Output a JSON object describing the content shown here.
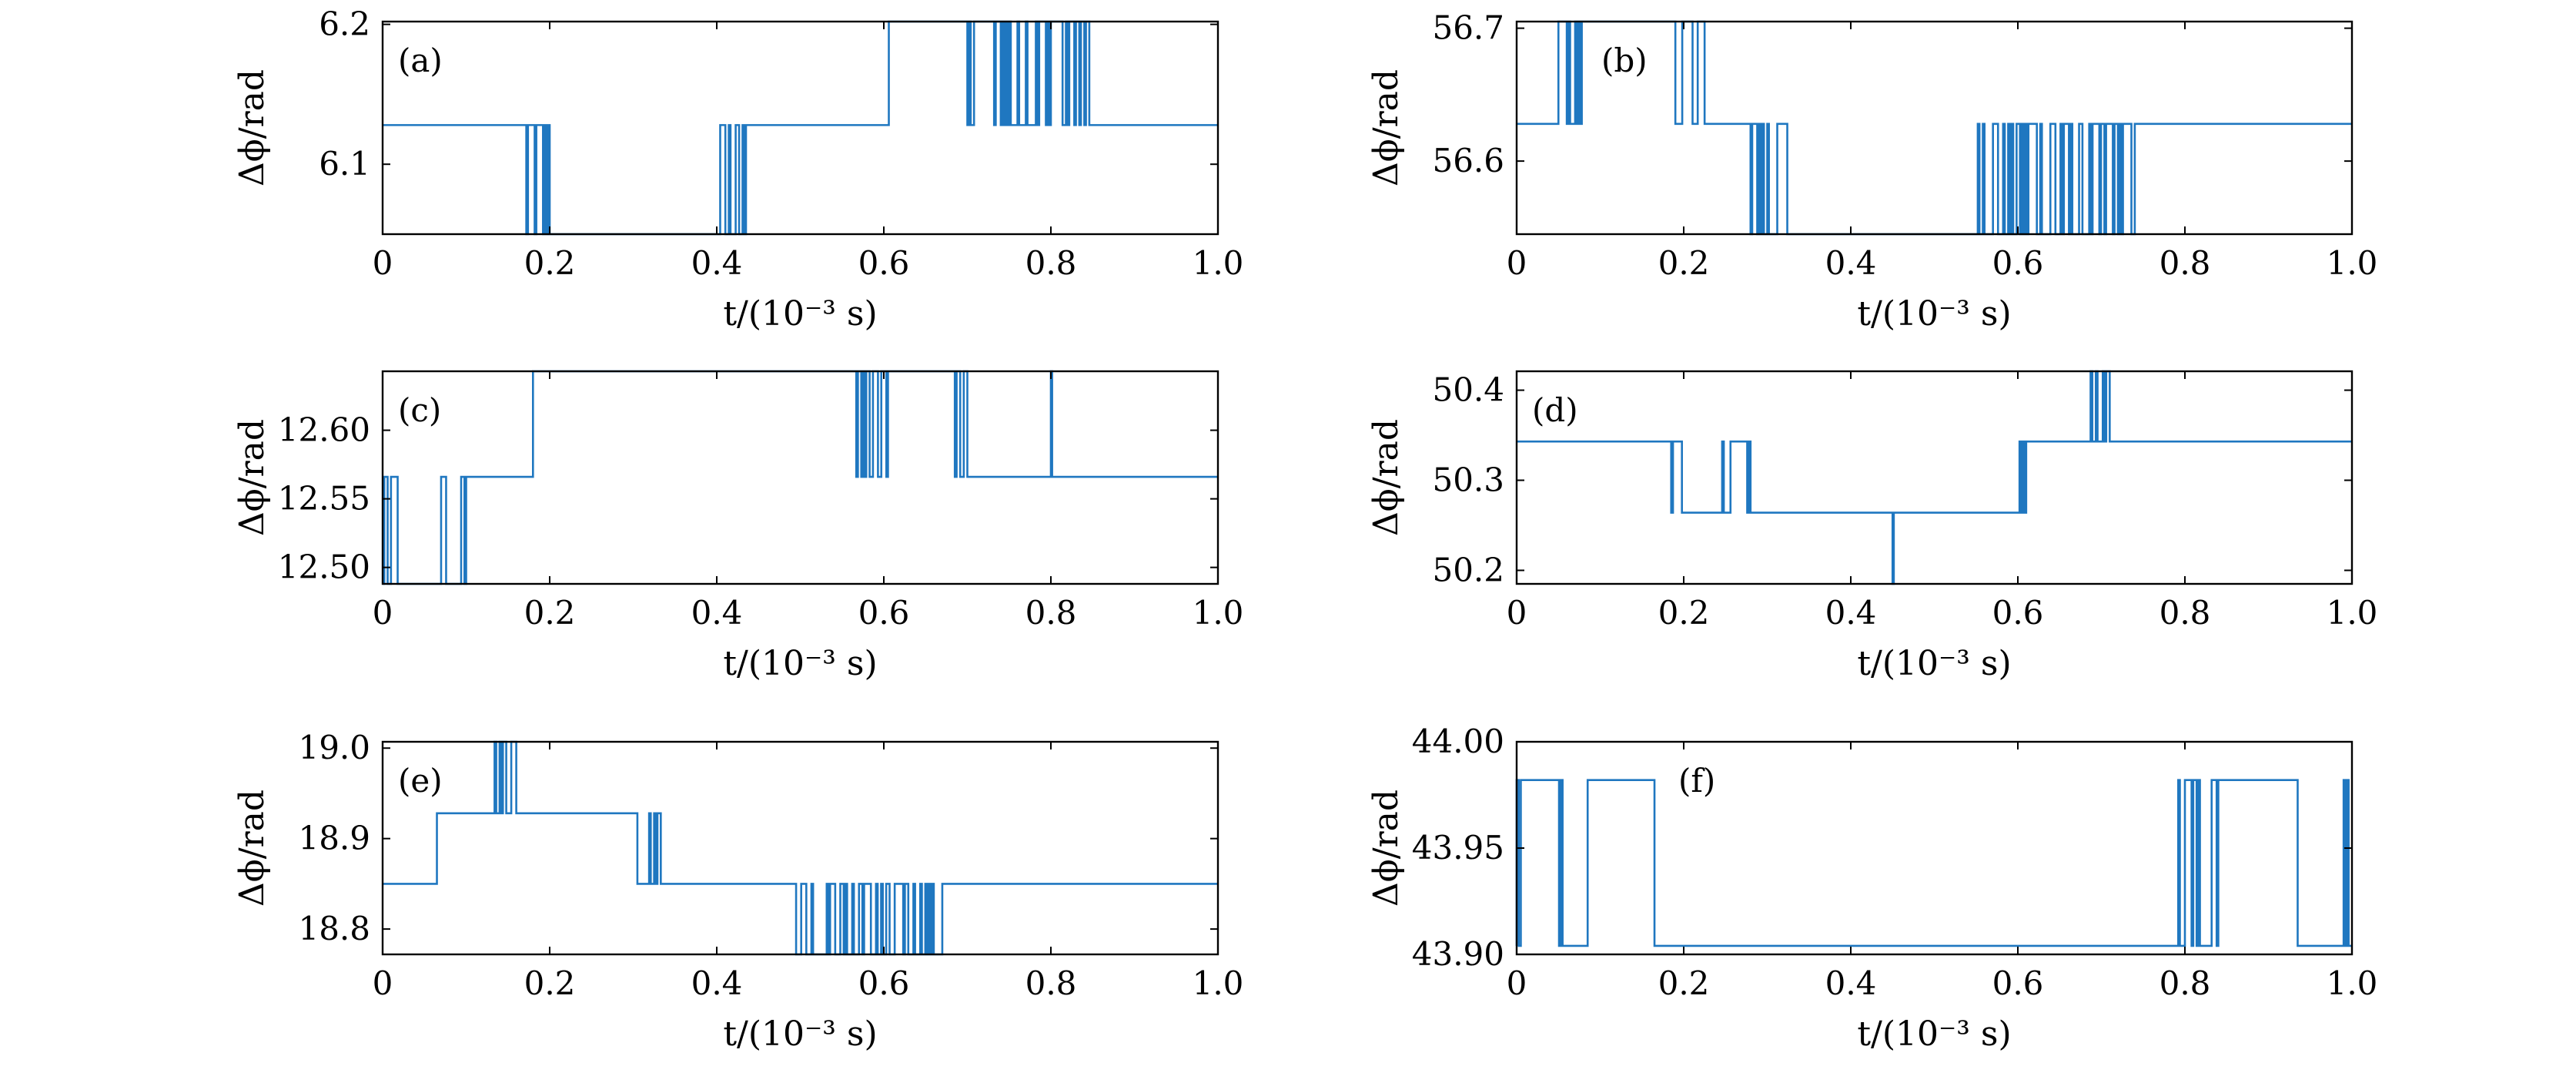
{
  "figure": {
    "line_color": "#1f77c0",
    "axis_color": "#000000",
    "background": "#ffffff"
  },
  "chart_data": [
    {
      "type": "line",
      "panel_label": "(a)",
      "xlabel": "t/(10⁻³ s)",
      "ylabel": "Δϕ/rad",
      "xlim": [
        0,
        1.0
      ],
      "ylim": [
        6.05,
        6.202
      ],
      "xticks": [
        0,
        0.2,
        0.4,
        0.6,
        0.8,
        1.0
      ],
      "xtick_labels": [
        "0",
        "0.2",
        "0.4",
        "0.6",
        "0.8",
        "1.0"
      ],
      "yticks": [
        6.1,
        6.2
      ],
      "ytick_labels": [
        "6.1",
        "6.2"
      ],
      "grid": false,
      "levels": [
        6.05,
        6.128,
        6.202
      ],
      "segments": [
        {
          "t0": 0,
          "t1": 0.17,
          "level": 1
        },
        {
          "t0": 0.17,
          "t1": 0.2,
          "noisy": [
            0,
            1
          ]
        },
        {
          "t0": 0.2,
          "t1": 0.4,
          "level": 0
        },
        {
          "t0": 0.4,
          "t1": 0.435,
          "noisy": [
            0,
            1
          ]
        },
        {
          "t0": 0.435,
          "t1": 0.6,
          "level": 1
        },
        {
          "t0": 0.6,
          "t1": 0.61,
          "noisy": [
            1,
            2
          ]
        },
        {
          "t0": 0.61,
          "t1": 0.7,
          "level": 2
        },
        {
          "t0": 0.7,
          "t1": 0.71,
          "noisy": [
            1,
            2
          ]
        },
        {
          "t0": 0.71,
          "t1": 0.73,
          "level": 2
        },
        {
          "t0": 0.73,
          "t1": 0.8,
          "noisy": [
            1,
            2
          ]
        },
        {
          "t0": 0.8,
          "t1": 0.81,
          "level": 2
        },
        {
          "t0": 0.81,
          "t1": 0.85,
          "noisy": [
            1,
            2
          ]
        },
        {
          "t0": 0.85,
          "t1": 1.0,
          "level": 1
        }
      ]
    },
    {
      "type": "line",
      "panel_label": "(b)",
      "xlabel": "t/(10⁻³ s)",
      "ylabel": "Δϕ/rad",
      "xlim": [
        0,
        1.0
      ],
      "ylim": [
        56.545,
        56.705
      ],
      "xticks": [
        0,
        0.2,
        0.4,
        0.6,
        0.8,
        1.0
      ],
      "xtick_labels": [
        "0",
        "0.2",
        "0.4",
        "0.6",
        "0.8",
        "1.0"
      ],
      "yticks": [
        56.6,
        56.7
      ],
      "ytick_labels": [
        "56.6",
        "56.7"
      ],
      "grid": false,
      "levels": [
        56.545,
        56.628,
        56.705
      ],
      "segments": [
        {
          "t0": 0,
          "t1": 0.05,
          "level": 1
        },
        {
          "t0": 0.05,
          "t1": 0.08,
          "noisy": [
            1,
            2
          ]
        },
        {
          "t0": 0.08,
          "t1": 0.19,
          "level": 2
        },
        {
          "t0": 0.19,
          "t1": 0.225,
          "noisy": [
            1,
            2
          ]
        },
        {
          "t0": 0.225,
          "t1": 0.28,
          "level": 1
        },
        {
          "t0": 0.28,
          "t1": 0.33,
          "noisy": [
            0,
            1
          ]
        },
        {
          "t0": 0.33,
          "t1": 0.55,
          "level": 0
        },
        {
          "t0": 0.55,
          "t1": 0.74,
          "noisy": [
            0,
            1
          ]
        },
        {
          "t0": 0.74,
          "t1": 1.0,
          "level": 1
        }
      ]
    },
    {
      "type": "line",
      "panel_label": "(c)",
      "xlabel": "t/(10⁻³ s)",
      "ylabel": "Δϕ/rad",
      "xlim": [
        0,
        1.0
      ],
      "ylim": [
        12.488,
        12.643
      ],
      "xticks": [
        0,
        0.2,
        0.4,
        0.6,
        0.8,
        1.0
      ],
      "xtick_labels": [
        "0",
        "0.2",
        "0.4",
        "0.6",
        "0.8",
        "1.0"
      ],
      "yticks": [
        12.5,
        12.55,
        12.6
      ],
      "ytick_labels": [
        "12.50",
        "12.55",
        "12.60"
      ],
      "grid": false,
      "levels": [
        12.488,
        12.566,
        12.643
      ],
      "segments": [
        {
          "t0": 0,
          "t1": 0.02,
          "noisy": [
            0,
            1
          ]
        },
        {
          "t0": 0.02,
          "t1": 0.07,
          "level": 0
        },
        {
          "t0": 0.07,
          "t1": 0.1,
          "noisy": [
            0,
            1
          ]
        },
        {
          "t0": 0.1,
          "t1": 0.175,
          "level": 1
        },
        {
          "t0": 0.175,
          "t1": 0.18,
          "noisy": [
            1,
            2
          ]
        },
        {
          "t0": 0.18,
          "t1": 0.565,
          "level": 2
        },
        {
          "t0": 0.565,
          "t1": 0.605,
          "noisy": [
            1,
            2
          ]
        },
        {
          "t0": 0.605,
          "t1": 0.685,
          "level": 2
        },
        {
          "t0": 0.685,
          "t1": 0.7,
          "noisy": [
            1,
            2
          ]
        },
        {
          "t0": 0.7,
          "t1": 0.8,
          "level": 1
        },
        {
          "t0": 0.8,
          "t1": 0.8015,
          "level": 2
        },
        {
          "t0": 0.8015,
          "t1": 1.0,
          "level": 1
        }
      ]
    },
    {
      "type": "line",
      "panel_label": "(d)",
      "xlabel": "t/(10⁻³ s)",
      "ylabel": "Δϕ/rad",
      "xlim": [
        0,
        1.0
      ],
      "ylim": [
        50.185,
        50.421
      ],
      "xticks": [
        0,
        0.2,
        0.4,
        0.6,
        0.8,
        1.0
      ],
      "xtick_labels": [
        "0",
        "0.2",
        "0.4",
        "0.6",
        "0.8",
        "1.0"
      ],
      "yticks": [
        50.2,
        50.3,
        50.4
      ],
      "ytick_labels": [
        "50.2",
        "50.3",
        "50.4"
      ],
      "grid": false,
      "levels": [
        50.185,
        50.264,
        50.343,
        50.421
      ],
      "segments": [
        {
          "t0": 0,
          "t1": 0.185,
          "level": 2
        },
        {
          "t0": 0.185,
          "t1": 0.2,
          "noisy": [
            1,
            2
          ]
        },
        {
          "t0": 0.2,
          "t1": 0.24,
          "level": 1
        },
        {
          "t0": 0.24,
          "t1": 0.28,
          "noisy": [
            1,
            2
          ]
        },
        {
          "t0": 0.28,
          "t1": 0.45,
          "level": 1
        },
        {
          "t0": 0.45,
          "t1": 0.4515,
          "level": 0
        },
        {
          "t0": 0.4515,
          "t1": 0.6,
          "level": 1
        },
        {
          "t0": 0.6,
          "t1": 0.61,
          "noisy": [
            1,
            2
          ]
        },
        {
          "t0": 0.61,
          "t1": 0.685,
          "level": 2
        },
        {
          "t0": 0.685,
          "t1": 0.71,
          "noisy": [
            2,
            3
          ]
        },
        {
          "t0": 0.71,
          "t1": 1.0,
          "level": 2
        }
      ]
    },
    {
      "type": "line",
      "panel_label": "(e)",
      "xlabel": "t/(10⁻³ s)",
      "ylabel": "Δϕ/rad",
      "xlim": [
        0,
        1.0
      ],
      "ylim": [
        18.772,
        19.007
      ],
      "xticks": [
        0,
        0.2,
        0.4,
        0.6,
        0.8,
        1.0
      ],
      "xtick_labels": [
        "0",
        "0.2",
        "0.4",
        "0.6",
        "0.8",
        "1.0"
      ],
      "yticks": [
        18.8,
        18.9,
        19.0
      ],
      "ytick_labels": [
        "18.8",
        "18.9",
        "19.0"
      ],
      "grid": false,
      "levels": [
        18.772,
        18.85,
        18.928,
        19.007
      ],
      "segments": [
        {
          "t0": 0,
          "t1": 0.065,
          "level": 1
        },
        {
          "t0": 0.065,
          "t1": 0.07,
          "noisy": [
            1,
            2
          ]
        },
        {
          "t0": 0.07,
          "t1": 0.13,
          "level": 2
        },
        {
          "t0": 0.13,
          "t1": 0.16,
          "noisy": [
            2,
            3
          ]
        },
        {
          "t0": 0.16,
          "t1": 0.305,
          "level": 2
        },
        {
          "t0": 0.305,
          "t1": 0.335,
          "noisy": [
            1,
            2
          ]
        },
        {
          "t0": 0.335,
          "t1": 0.495,
          "level": 1
        },
        {
          "t0": 0.495,
          "t1": 0.67,
          "noisy": [
            0,
            1
          ]
        },
        {
          "t0": 0.67,
          "t1": 1.0,
          "level": 1
        }
      ]
    },
    {
      "type": "line",
      "panel_label": "(f)",
      "xlabel": "t/(10⁻³ s)",
      "ylabel": "Δϕ/rad",
      "xlim": [
        0,
        1.0
      ],
      "ylim": [
        43.9,
        44.0
      ],
      "xticks": [
        0,
        0.2,
        0.4,
        0.6,
        0.8,
        1.0
      ],
      "xtick_labels": [
        "0",
        "0.2",
        "0.4",
        "0.6",
        "0.8",
        "1.0"
      ],
      "yticks": [
        43.9,
        43.95,
        44.0
      ],
      "ytick_labels": [
        "43.90",
        "43.95",
        "44.00"
      ],
      "grid": false,
      "levels": [
        43.904,
        43.982
      ],
      "segments": [
        {
          "t0": 0,
          "t1": 0.005,
          "noisy": [
            0,
            1
          ]
        },
        {
          "t0": 0.005,
          "t1": 0.04,
          "level": 1
        },
        {
          "t0": 0.04,
          "t1": 0.055,
          "noisy": [
            0,
            1
          ]
        },
        {
          "t0": 0.055,
          "t1": 0.085,
          "level": 0
        },
        {
          "t0": 0.085,
          "t1": 0.165,
          "level": 1
        },
        {
          "t0": 0.165,
          "t1": 0.79,
          "level": 0
        },
        {
          "t0": 0.79,
          "t1": 0.84,
          "noisy": [
            0,
            1
          ]
        },
        {
          "t0": 0.84,
          "t1": 0.935,
          "level": 1
        },
        {
          "t0": 0.935,
          "t1": 0.99,
          "level": 0
        },
        {
          "t0": 0.99,
          "t1": 1.0,
          "noisy": [
            0,
            1
          ]
        }
      ]
    }
  ]
}
